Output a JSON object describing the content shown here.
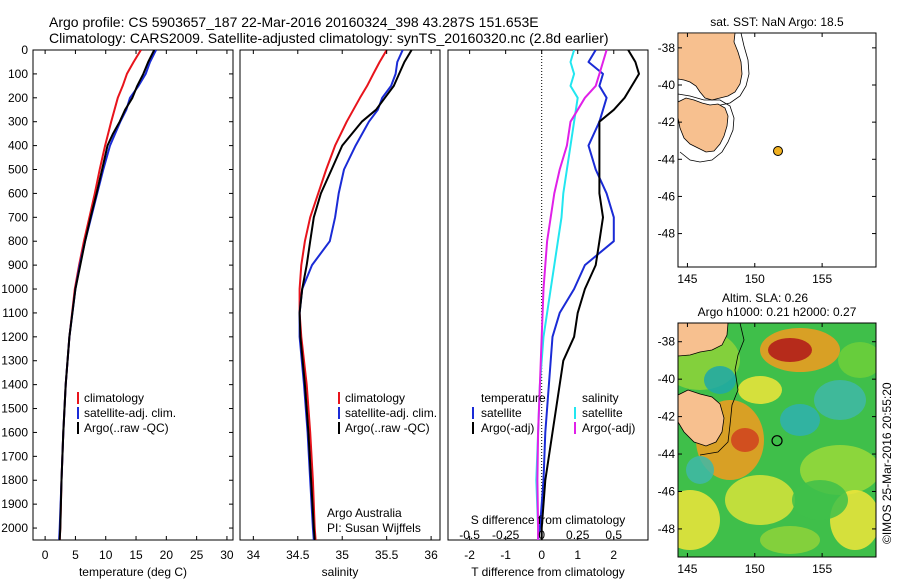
{
  "header": {
    "line1": "Argo profile: CS 5903657_187 22-Mar-2016 20160324_398 43.287S 151.653E",
    "line2": "Climatology: CARS2009. Satellite-adjusted climatology: synTS_20160320.nc (2.8d earlier)"
  },
  "footer": {
    "credit1": "Argo Australia",
    "credit2": "PI: Susan Wijffels",
    "timestamp": "©IMOS 25-Mar-2016 20:55:20"
  },
  "colors": {
    "climatology": "#e8141c",
    "satellite": "#1a2bd6",
    "argo": "#000000",
    "sat_salinity": "#22e6f0",
    "argo_salinity": "#e020e8",
    "land": "#f7c08f"
  },
  "chart_data": [
    {
      "type": "line",
      "id": "temperature",
      "xlabel": "temperature (deg C)",
      "ylabel": "",
      "xlim": [
        -2,
        31
      ],
      "ylim": [
        2050,
        0
      ],
      "xticks": [
        0,
        5,
        10,
        15,
        20,
        25,
        30
      ],
      "yticks": [
        0,
        100,
        200,
        300,
        400,
        500,
        600,
        700,
        800,
        900,
        1000,
        1100,
        1200,
        1300,
        1400,
        1500,
        1600,
        1700,
        1800,
        1900,
        2000
      ],
      "legend": [
        "climatology",
        "satellite-adj. clim.",
        "Argo(..raw -QC)"
      ],
      "series": [
        {
          "name": "climatology",
          "color_key": "climatology",
          "depth": [
            0,
            50,
            100,
            150,
            200,
            300,
            400,
            500,
            600,
            700,
            800,
            900,
            1000,
            1200,
            1400,
            1600,
            1800,
            2000,
            2050
          ],
          "values": [
            15.8,
            14.6,
            13.5,
            12.8,
            12.0,
            10.9,
            9.9,
            9.0,
            8.2,
            7.3,
            6.4,
            5.6,
            4.9,
            4.0,
            3.4,
            3.0,
            2.7,
            2.5,
            2.4
          ]
        },
        {
          "name": "satellite-adj. clim.",
          "color_key": "satellite",
          "depth": [
            0,
            50,
            100,
            150,
            200,
            250,
            300,
            400,
            500,
            600,
            700,
            800,
            900,
            1000,
            1200,
            1400,
            1600,
            1800,
            2000,
            2050
          ],
          "values": [
            18.3,
            17.3,
            16.6,
            15.4,
            14.0,
            13.4,
            12.4,
            10.7,
            9.6,
            8.6,
            7.6,
            6.6,
            5.7,
            5.0,
            4.0,
            3.4,
            3.0,
            2.7,
            2.4,
            2.3
          ]
        },
        {
          "name": "Argo(..raw -QC)",
          "color_key": "argo",
          "depth": [
            0,
            50,
            100,
            150,
            200,
            250,
            300,
            350,
            400,
            500,
            600,
            700,
            800,
            900,
            1000,
            1200,
            1400,
            1600,
            1800,
            2000,
            2050
          ],
          "values": [
            18.0,
            17.0,
            16.2,
            15.2,
            14.4,
            13.2,
            12.3,
            11.2,
            10.3,
            9.4,
            8.5,
            7.5,
            6.6,
            5.8,
            5.0,
            4.0,
            3.4,
            3.0,
            2.7,
            2.5,
            2.4
          ]
        }
      ]
    },
    {
      "type": "line",
      "id": "salinity",
      "xlabel": "salinity",
      "ylabel": "",
      "xlim": [
        33.85,
        36.1
      ],
      "ylim": [
        2050,
        0
      ],
      "xticks": [
        34,
        34.5,
        35,
        35.5,
        36
      ],
      "xticklabels": [
        "34",
        "34.5",
        "35",
        "35.5",
        "36"
      ],
      "legend": [
        "climatology",
        "satellite-adj. clim.",
        "Argo(..raw -QC)"
      ],
      "series": [
        {
          "name": "climatology",
          "color_key": "climatology",
          "depth": [
            0,
            50,
            100,
            150,
            200,
            300,
            400,
            500,
            600,
            700,
            800,
            900,
            1000,
            1100,
            1200,
            1400,
            1600,
            1800,
            2000,
            2050
          ],
          "values": [
            35.5,
            35.42,
            35.35,
            35.28,
            35.2,
            35.05,
            34.92,
            34.82,
            34.73,
            34.64,
            34.58,
            34.54,
            34.52,
            34.52,
            34.54,
            34.6,
            34.64,
            34.67,
            34.69,
            34.7
          ]
        },
        {
          "name": "satellite-adj. clim.",
          "color_key": "satellite",
          "depth": [
            0,
            50,
            100,
            150,
            200,
            250,
            300,
            400,
            500,
            600,
            700,
            800,
            900,
            1000,
            1100,
            1200,
            1400,
            1600,
            1800,
            2000,
            2050
          ],
          "values": [
            35.68,
            35.62,
            35.6,
            35.55,
            35.45,
            35.4,
            35.3,
            35.15,
            35.02,
            34.96,
            34.92,
            34.86,
            34.66,
            34.55,
            34.52,
            34.52,
            34.57,
            34.61,
            34.64,
            34.67,
            34.68
          ]
        },
        {
          "name": "Argo(..raw -QC)",
          "color_key": "argo",
          "depth": [
            0,
            50,
            100,
            150,
            200,
            250,
            300,
            400,
            500,
            600,
            700,
            800,
            900,
            1000,
            1100,
            1200,
            1400,
            1600,
            1800,
            2000,
            2050
          ],
          "values": [
            35.78,
            35.7,
            35.64,
            35.58,
            35.48,
            35.38,
            35.22,
            35.0,
            34.88,
            34.76,
            34.68,
            34.64,
            34.6,
            34.55,
            34.52,
            34.53,
            34.58,
            34.62,
            34.65,
            34.68,
            34.69
          ]
        }
      ]
    },
    {
      "type": "line",
      "id": "difference",
      "xlabel": "T difference from climatology",
      "xlabel_top": "S difference from climatology",
      "xlim": [
        -2.6,
        2.95
      ],
      "ylim": [
        2050,
        0
      ],
      "xticks": [
        -2,
        -1,
        0,
        1,
        2
      ],
      "xticklabels": [
        "-2",
        "-1",
        "0",
        "1",
        "2"
      ],
      "s_ticklabels": [
        {
          "t": -2,
          "label": "-0.5"
        },
        {
          "t": -1,
          "label": "-0.25"
        },
        {
          "t": 0,
          "label": "0"
        },
        {
          "t": 1,
          "label": "0.25"
        },
        {
          "t": 2,
          "label": "0.5"
        }
      ],
      "legend_left_title": "temperature",
      "legend_right_title": "salinity",
      "legend_left": [
        "satellite",
        "Argo(-adj)"
      ],
      "legend_right": [
        "satellite",
        "Argo(-adj)"
      ],
      "series": [
        {
          "name": "T satellite",
          "color_key": "satellite",
          "depth": [
            0,
            50,
            100,
            150,
            200,
            250,
            300,
            400,
            500,
            600,
            700,
            800,
            900,
            1000,
            1100,
            1200,
            1400,
            1600,
            1800,
            2000,
            2050
          ],
          "values": [
            1.5,
            1.3,
            1.7,
            1.6,
            1.8,
            1.7,
            1.6,
            1.3,
            1.5,
            1.8,
            2.0,
            2.0,
            1.2,
            0.9,
            0.5,
            0.3,
            0.2,
            0.1,
            0.05,
            -0.05,
            -0.1
          ]
        },
        {
          "name": "T Argo(-adj)",
          "color_key": "argo",
          "depth": [
            0,
            50,
            100,
            150,
            200,
            250,
            300,
            400,
            500,
            600,
            700,
            800,
            900,
            1000,
            1100,
            1200,
            1300,
            1400,
            1600,
            1800,
            2000,
            2050
          ],
          "values": [
            2.4,
            2.6,
            2.7,
            2.5,
            2.3,
            2.0,
            1.6,
            1.6,
            1.6,
            1.6,
            1.7,
            1.6,
            1.5,
            1.2,
            1.0,
            0.9,
            0.6,
            0.5,
            0.3,
            0.1,
            0.0,
            0.0
          ]
        },
        {
          "name": "S satellite",
          "color_key": "sat_salinity",
          "depth": [
            0,
            50,
            100,
            150,
            200,
            300,
            400,
            500,
            600,
            700,
            800,
            900,
            1000,
            1200,
            1400,
            1600,
            1800,
            2000,
            2050
          ],
          "values": [
            0.9,
            0.8,
            0.9,
            0.8,
            1.0,
            0.9,
            0.8,
            0.7,
            0.6,
            0.55,
            0.45,
            0.35,
            0.25,
            0.05,
            -0.05,
            -0.1,
            -0.15,
            -0.1,
            -0.1
          ]
        },
        {
          "name": "S Argo(-adj)",
          "color_key": "argo_salinity",
          "depth": [
            0,
            50,
            100,
            150,
            200,
            250,
            300,
            400,
            500,
            600,
            700,
            800,
            900,
            1000,
            1200,
            1400,
            1600,
            1800,
            2000,
            2050
          ],
          "values": [
            1.8,
            1.7,
            1.6,
            1.5,
            1.2,
            1.0,
            0.8,
            0.7,
            0.5,
            0.35,
            0.25,
            0.15,
            0.1,
            0.05,
            0.0,
            -0.05,
            -0.1,
            -0.12,
            -0.1,
            -0.1
          ]
        }
      ]
    },
    {
      "type": "map",
      "id": "sst_map",
      "title": "sat. SST: NaN Argo: 18.5",
      "xlim": [
        144.3,
        159
      ],
      "ylim": [
        -49.8,
        -37.2
      ],
      "xticks": [
        145,
        150,
        155
      ],
      "yticks": [
        -38,
        -40,
        -42,
        -44,
        -46,
        -48
      ],
      "point": {
        "lon": 151.653,
        "lat": -43.287
      }
    },
    {
      "type": "heatmap",
      "id": "sla_map",
      "title1": "Altim. SLA: 0.26",
      "title2": "Argo h1000: 0.21 h2000: 0.27",
      "xlim": [
        144.3,
        159
      ],
      "ylim": [
        -49.5,
        -37.0
      ],
      "xticks": [
        145,
        150,
        155
      ],
      "yticks": [
        -38,
        -40,
        -42,
        -44,
        -46,
        -48
      ],
      "point": {
        "lon": 151.653,
        "lat": -43.287
      }
    }
  ]
}
